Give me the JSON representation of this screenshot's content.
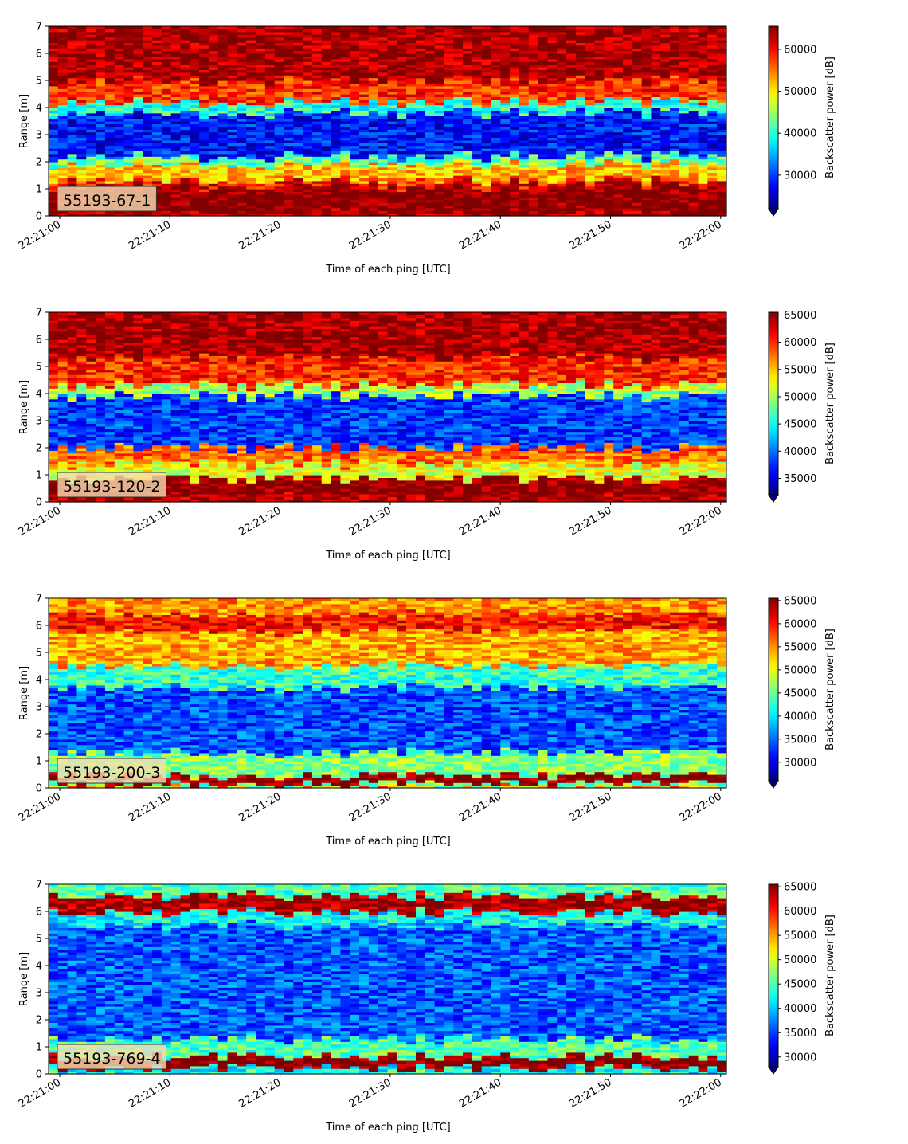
{
  "chart_data": [
    {
      "type": "heatmap",
      "label": "55193-67-1",
      "xlabel": "Time of each ping [UTC]",
      "ylabel": "Range [m]",
      "colorbar_label": "Backscatter power [dB]",
      "x_ticks": [
        "22:21:00",
        "22:21:10",
        "22:21:20",
        "22:21:30",
        "22:21:40",
        "22:21:50",
        "22:22:00"
      ],
      "y_ticks": [
        0,
        1,
        2,
        3,
        4,
        5,
        6,
        7
      ],
      "ylim": [
        0,
        7
      ],
      "color_range": [
        22000,
        65500
      ],
      "colorbar_ticks": [
        30000,
        40000,
        50000,
        60000
      ],
      "profile": [
        {
          "range": [
            0.0,
            0.2
          ],
          "power": 64000
        },
        {
          "range": [
            0.2,
            1.1
          ],
          "power": 65500
        },
        {
          "range": [
            1.1,
            1.3
          ],
          "power": 60000
        },
        {
          "range": [
            1.3,
            1.9
          ],
          "power": 52000
        },
        {
          "range": [
            1.9,
            2.2
          ],
          "power": 42000
        },
        {
          "range": [
            2.2,
            3.8
          ],
          "power": 28000
        },
        {
          "range": [
            3.8,
            4.2
          ],
          "power": 40000
        },
        {
          "range": [
            4.2,
            5.0
          ],
          "power": 58000
        },
        {
          "range": [
            5.0,
            7.0
          ],
          "power": 64000
        }
      ]
    },
    {
      "type": "heatmap",
      "label": "55193-120-2",
      "xlabel": "Time of each ping [UTC]",
      "ylabel": "Range [m]",
      "colorbar_label": "Backscatter power [dB]",
      "x_ticks": [
        "22:21:00",
        "22:21:10",
        "22:21:20",
        "22:21:30",
        "22:21:40",
        "22:21:50",
        "22:22:00"
      ],
      "y_ticks": [
        0,
        1,
        2,
        3,
        4,
        5,
        6,
        7
      ],
      "ylim": [
        0,
        7
      ],
      "color_range": [
        32000,
        65500
      ],
      "colorbar_ticks": [
        35000,
        40000,
        45000,
        50000,
        55000,
        60000,
        65000
      ],
      "profile": [
        {
          "range": [
            0.0,
            0.2
          ],
          "power": 64000
        },
        {
          "range": [
            0.2,
            0.85
          ],
          "power": 65500
        },
        {
          "range": [
            0.85,
            1.4
          ],
          "power": 52000
        },
        {
          "range": [
            1.4,
            2.0
          ],
          "power": 58000
        },
        {
          "range": [
            2.0,
            3.9
          ],
          "power": 38000
        },
        {
          "range": [
            3.9,
            4.3
          ],
          "power": 50000
        },
        {
          "range": [
            4.3,
            5.3
          ],
          "power": 60000
        },
        {
          "range": [
            5.3,
            7.0
          ],
          "power": 64500
        }
      ]
    },
    {
      "type": "heatmap",
      "label": "55193-200-3",
      "xlabel": "Time of each ping [UTC]",
      "ylabel": "Range [m]",
      "colorbar_label": "Backscatter power [dB]",
      "x_ticks": [
        "22:21:00",
        "22:21:10",
        "22:21:20",
        "22:21:30",
        "22:21:40",
        "22:21:50",
        "22:22:00"
      ],
      "y_ticks": [
        0,
        1,
        2,
        3,
        4,
        5,
        6,
        7
      ],
      "ylim": [
        0,
        7
      ],
      "color_range": [
        26000,
        65500
      ],
      "colorbar_ticks": [
        30000,
        35000,
        40000,
        45000,
        50000,
        55000,
        60000,
        65000
      ],
      "profile": [
        {
          "range": [
            0.0,
            0.15
          ],
          "power": 45000
        },
        {
          "range": [
            0.15,
            0.45
          ],
          "power": 65000
        },
        {
          "range": [
            0.45,
            1.3
          ],
          "power": 46000
        },
        {
          "range": [
            1.3,
            3.7
          ],
          "power": 34000
        },
        {
          "range": [
            3.7,
            4.5
          ],
          "power": 43000
        },
        {
          "range": [
            4.5,
            5.8
          ],
          "power": 54000
        },
        {
          "range": [
            5.8,
            6.4
          ],
          "power": 60000
        },
        {
          "range": [
            6.4,
            7.0
          ],
          "power": 55000
        }
      ]
    },
    {
      "type": "heatmap",
      "label": "55193-769-4",
      "xlabel": "Time of each ping [UTC]",
      "ylabel": "Range [m]",
      "colorbar_label": "Backscatter power [dB]",
      "x_ticks": [
        "22:21:00",
        "22:21:10",
        "22:21:20",
        "22:21:30",
        "22:21:40",
        "22:21:50",
        "22:22:00"
      ],
      "y_ticks": [
        0,
        1,
        2,
        3,
        4,
        5,
        6,
        7
      ],
      "ylim": [
        0,
        7
      ],
      "color_range": [
        28000,
        65500
      ],
      "colorbar_ticks": [
        30000,
        35000,
        40000,
        45000,
        50000,
        55000,
        60000,
        65000
      ],
      "profile": [
        {
          "range": [
            0.0,
            0.25
          ],
          "power": 42000
        },
        {
          "range": [
            0.25,
            0.65
          ],
          "power": 65500
        },
        {
          "range": [
            0.65,
            1.3
          ],
          "power": 45000
        },
        {
          "range": [
            1.3,
            5.5
          ],
          "power": 36000
        },
        {
          "range": [
            5.5,
            6.0
          ],
          "power": 42000
        },
        {
          "range": [
            6.0,
            6.6
          ],
          "power": 64000
        },
        {
          "range": [
            6.6,
            7.0
          ],
          "power": 45000
        }
      ]
    }
  ]
}
